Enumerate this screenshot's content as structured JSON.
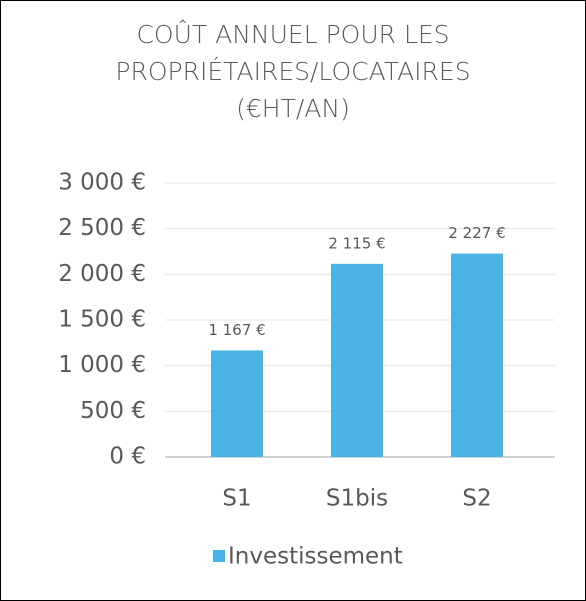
{
  "chart_data": {
    "type": "bar",
    "title": "COÛT ANNUEL POUR LES PROPRIÉTAIRES/LOCATAIRES (€HT/AN)",
    "categories": [
      "S1",
      "S1bis",
      "S2"
    ],
    "series": [
      {
        "name": "Investissement",
        "color": "#4ab3e3",
        "values": [
          1167,
          2115,
          2227
        ],
        "value_labels": [
          "1 167 €",
          "2 115 €",
          "2 227 €"
        ]
      }
    ],
    "ylim": [
      0,
      3000
    ],
    "yticks": [
      {
        "value": 0,
        "label": "0 €"
      },
      {
        "value": 500,
        "label": "500 €"
      },
      {
        "value": 1000,
        "label": "1 000 €"
      },
      {
        "value": 1500,
        "label": "1 500 €"
      },
      {
        "value": 2000,
        "label": "2 000 €"
      },
      {
        "value": 2500,
        "label": "2 500 €"
      },
      {
        "value": 3000,
        "label": "3 000 €"
      }
    ],
    "grid": true,
    "legend": "bottom"
  }
}
